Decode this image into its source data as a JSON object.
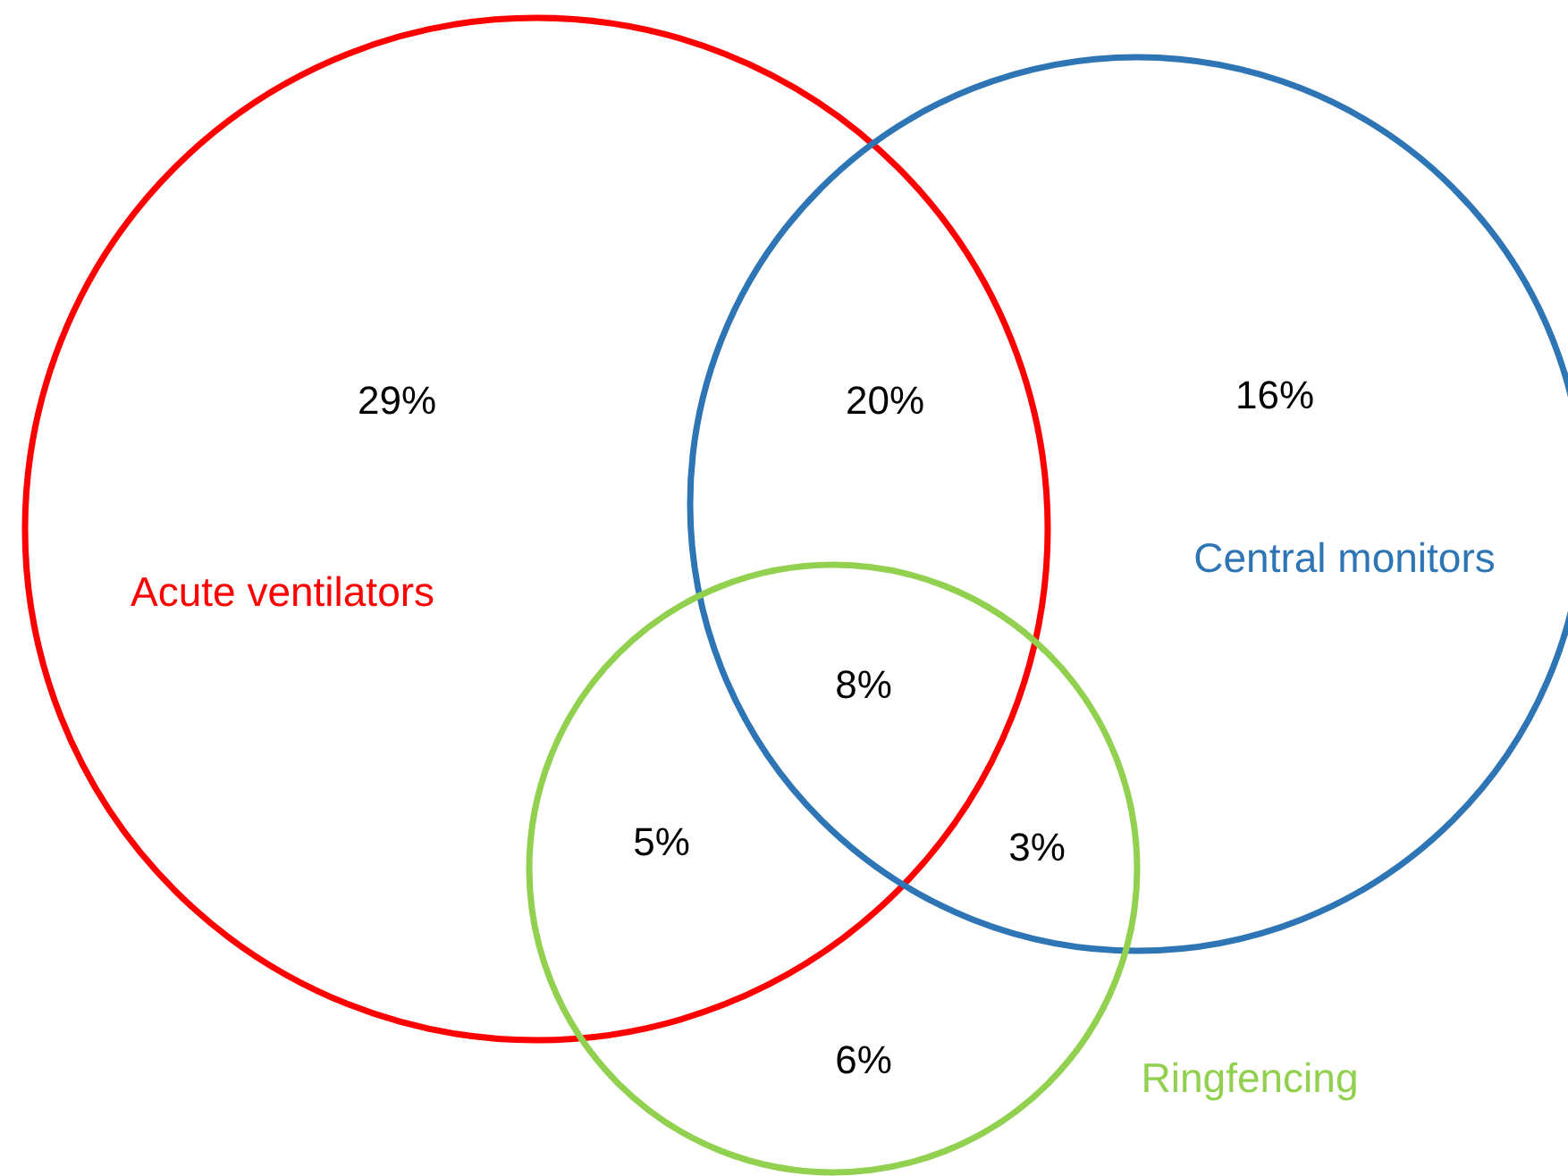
{
  "chart_data": {
    "type": "other",
    "categories": [
      null,
      null,
      null,
      null,
      null,
      null,
      null
    ],
    "values": [
      29,
      20,
      16,
      8,
      5,
      3,
      6
    ],
    "value_labels": [
      "29%",
      "20%",
      "16%",
      "8%",
      "5%",
      "3%",
      "6%"
    ],
    "annotations": [
      "Acute ventilators",
      "Central monitors",
      "Ringfencing"
    ]
  }
}
